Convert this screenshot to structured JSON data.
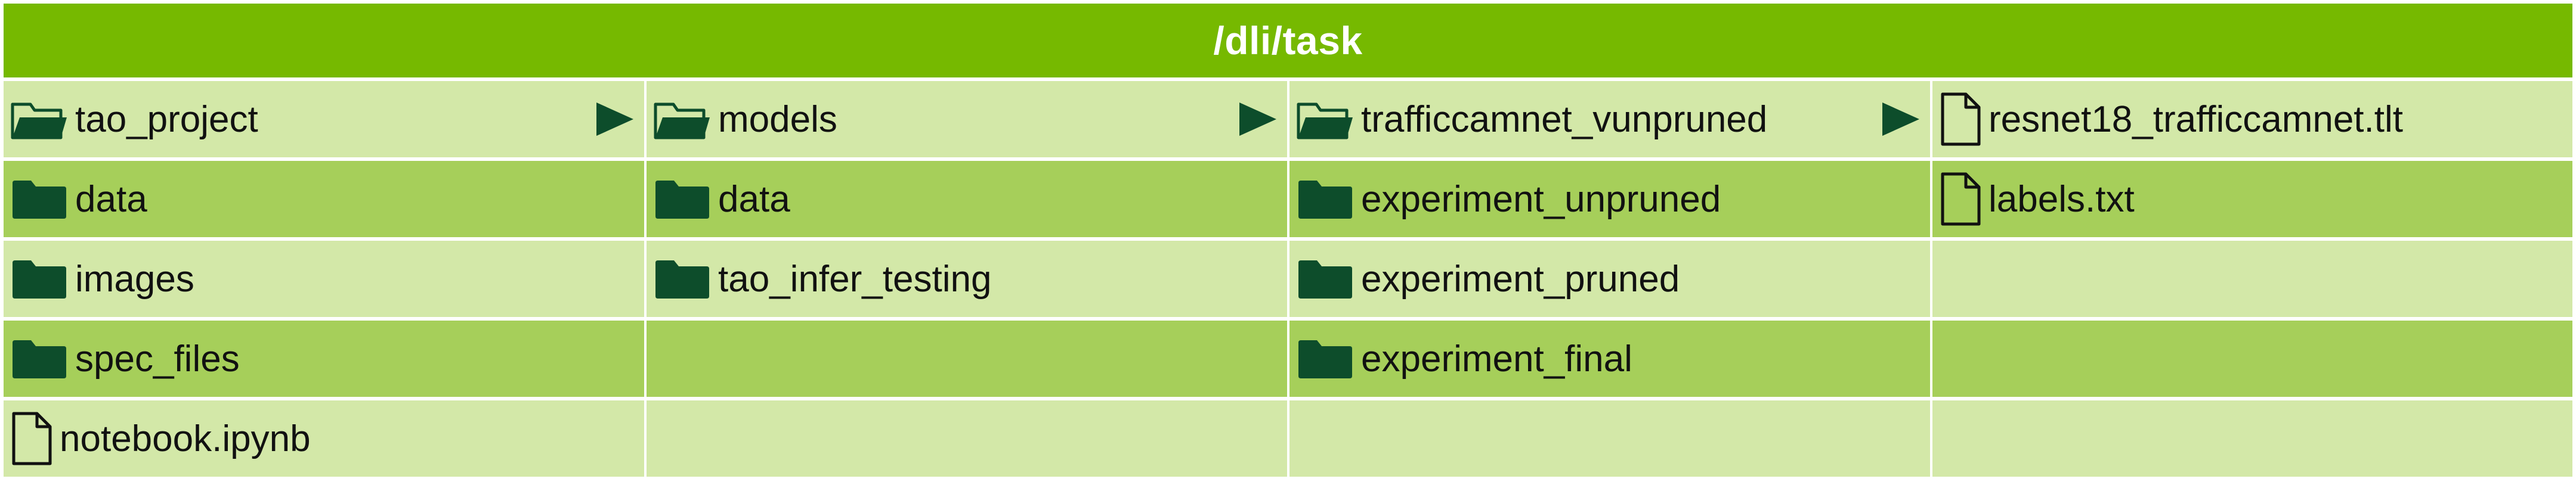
{
  "title": "/dli/task",
  "colors": {
    "header": "#76b900",
    "row_light": "#d3e8a8",
    "row_dark": "#a6cf5a",
    "folder": "#0d4d2b",
    "arrow": "#0d4d2b"
  },
  "columns": [
    {
      "items": [
        {
          "label": "tao_project",
          "icon": "open-folder-icon",
          "expanded": true
        },
        {
          "label": "data",
          "icon": "folder-icon"
        },
        {
          "label": "images",
          "icon": "folder-icon"
        },
        {
          "label": "spec_files",
          "icon": "folder-icon"
        },
        {
          "label": "notebook.ipynb",
          "icon": "file-icon"
        }
      ]
    },
    {
      "items": [
        {
          "label": "models",
          "icon": "open-folder-icon",
          "expanded": true
        },
        {
          "label": "data",
          "icon": "folder-icon"
        },
        {
          "label": "tao_infer_testing",
          "icon": "folder-icon"
        }
      ]
    },
    {
      "items": [
        {
          "label": "trafficcamnet_vunpruned",
          "icon": "open-folder-icon",
          "expanded": true
        },
        {
          "label": "experiment_unpruned",
          "icon": "folder-icon"
        },
        {
          "label": "experiment_pruned",
          "icon": "folder-icon"
        },
        {
          "label": "experiment_final",
          "icon": "folder-icon"
        }
      ]
    },
    {
      "items": [
        {
          "label": "resnet18_trafficcamnet.tlt",
          "icon": "file-icon"
        },
        {
          "label": "labels.txt",
          "icon": "file-icon"
        }
      ]
    }
  ]
}
